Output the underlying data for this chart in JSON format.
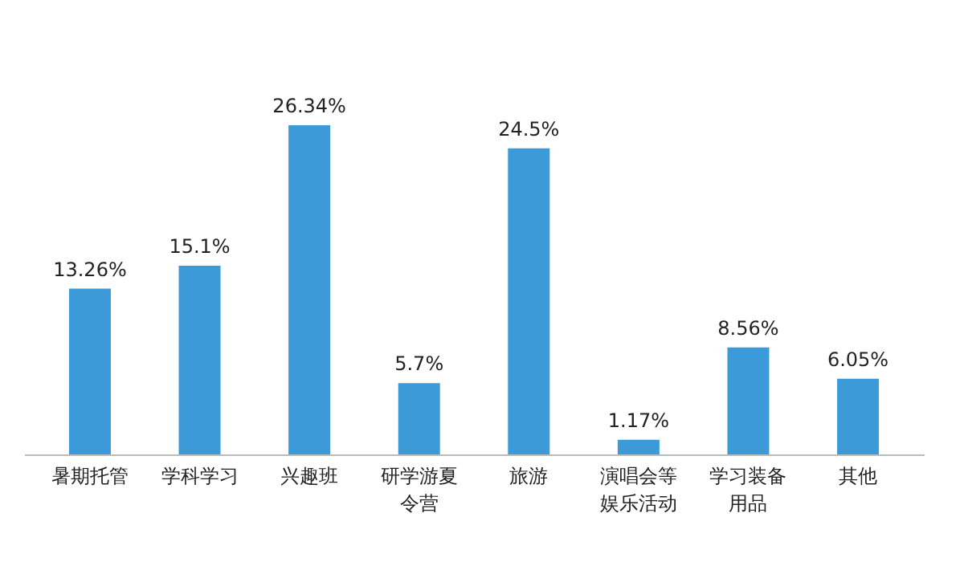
{
  "chart_data": {
    "type": "bar",
    "categories": [
      "暑期托管",
      "学科学习",
      "兴趣班",
      "研学游夏令营",
      "旅游",
      "演唱会等娱乐活动",
      "学习装备用品",
      "其他"
    ],
    "values": [
      13.26,
      15.1,
      26.34,
      5.7,
      24.5,
      1.17,
      8.56,
      6.05
    ],
    "value_labels": [
      "13.26%",
      "15.1%",
      "26.34%",
      "5.7%",
      "24.5%",
      "1.17%",
      "8.56%",
      "6.05%"
    ],
    "color": "#3d9ad9"
  }
}
